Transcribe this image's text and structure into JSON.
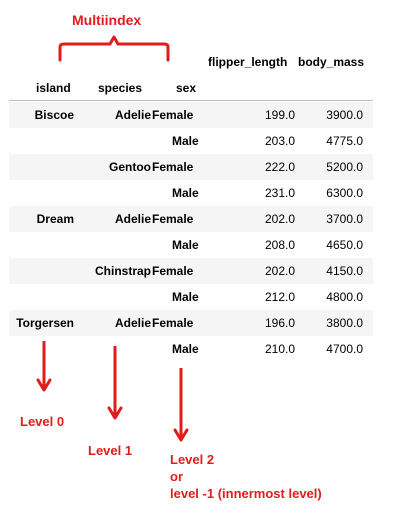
{
  "annotations": {
    "multiindex_label": "Multiindex",
    "level0": "Level 0",
    "level1": "Level 1",
    "level2_line1": "Level 2",
    "level2_line2": "or",
    "level2_line3": "level -1 (innermost level)"
  },
  "table": {
    "column_headers": [
      "flipper_length",
      "body_mass"
    ],
    "index_names": [
      "island",
      "species",
      "sex"
    ],
    "rows": [
      {
        "island": "Biscoe",
        "species": "Adelie",
        "sex": "Female",
        "flipper_length": "199.0",
        "body_mass": "3900.0"
      },
      {
        "island": "",
        "species": "",
        "sex": "Male",
        "flipper_length": "203.0",
        "body_mass": "4775.0"
      },
      {
        "island": "",
        "species": "Gentoo",
        "sex": "Female",
        "flipper_length": "222.0",
        "body_mass": "5200.0"
      },
      {
        "island": "",
        "species": "",
        "sex": "Male",
        "flipper_length": "231.0",
        "body_mass": "6300.0"
      },
      {
        "island": "Dream",
        "species": "Adelie",
        "sex": "Female",
        "flipper_length": "202.0",
        "body_mass": "3700.0"
      },
      {
        "island": "",
        "species": "",
        "sex": "Male",
        "flipper_length": "208.0",
        "body_mass": "4650.0"
      },
      {
        "island": "",
        "species": "Chinstrap",
        "sex": "Female",
        "flipper_length": "202.0",
        "body_mass": "4150.0"
      },
      {
        "island": "",
        "species": "",
        "sex": "Male",
        "flipper_length": "212.0",
        "body_mass": "4800.0"
      },
      {
        "island": "Torgersen",
        "species": "Adelie",
        "sex": "Female",
        "flipper_length": "196.0",
        "body_mass": "3800.0"
      },
      {
        "island": "",
        "species": "",
        "sex": "Male",
        "flipper_length": "210.0",
        "body_mass": "4700.0"
      }
    ]
  },
  "colors": {
    "annotation": "#e21b1b",
    "stripe": "#f5f5f5",
    "rule": "#bdbdbd"
  }
}
